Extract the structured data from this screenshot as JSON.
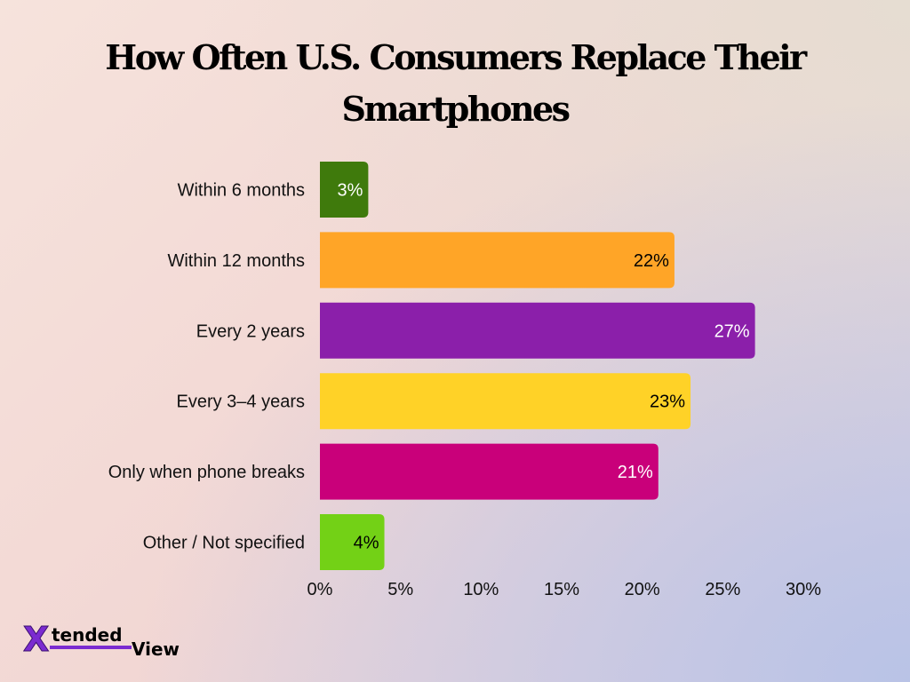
{
  "chart_data": {
    "type": "bar",
    "orientation": "horizontal",
    "title": "How Often U.S. Consumers Replace Their Smartphones",
    "categories": [
      "Within 6 months",
      "Within 12 months",
      "Every 2 years",
      "Every 3–4 years",
      "Only when phone breaks",
      "Other / Not specified"
    ],
    "values": [
      3,
      22,
      27,
      23,
      21,
      4
    ],
    "value_labels": [
      "3%",
      "22%",
      "27%",
      "23%",
      "21%",
      "4%"
    ],
    "colors": [
      "#3f7a0c",
      "#ffa527",
      "#8b1faa",
      "#ffd227",
      "#c9007a",
      "#73d116"
    ],
    "label_colors": [
      "#ffffff",
      "#000000",
      "#ffffff",
      "#000000",
      "#ffffff",
      "#000000"
    ],
    "xlim": [
      0,
      30
    ],
    "xticks": [
      0,
      5,
      10,
      15,
      20,
      25,
      30
    ],
    "xtick_labels": [
      "0%",
      "5%",
      "10%",
      "15%",
      "20%",
      "25%",
      "30%"
    ],
    "xlabel": "",
    "ylabel": "",
    "grid": false,
    "legend": "none"
  },
  "logo": {
    "mark": "X",
    "text_top": "tended",
    "text_bottom": "View",
    "mark_color": "#7b2bd0",
    "text_color": "#000000"
  }
}
